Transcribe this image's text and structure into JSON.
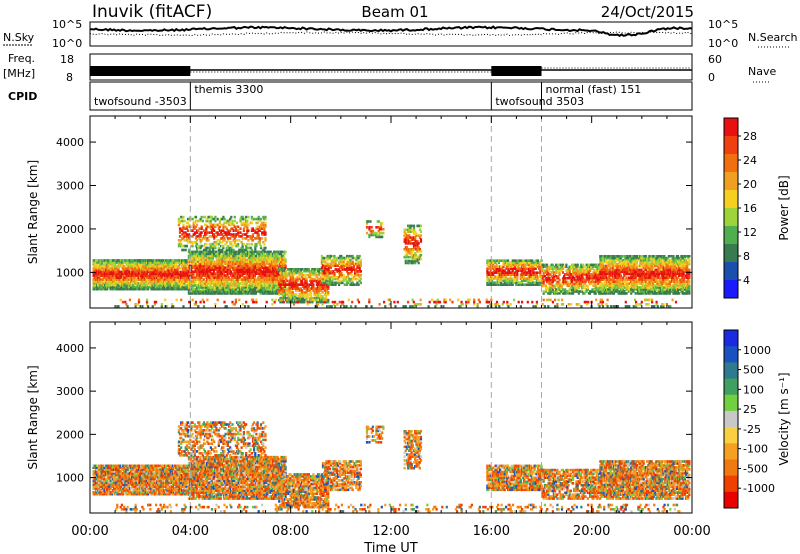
{
  "header": {
    "station": "Inuvik (fitACF)",
    "beam": "Beam 01",
    "date": "24/Oct/2015"
  },
  "sky_panel": {
    "left_label": "N.Sky",
    "right_label": "N.Search",
    "left_ticks": [
      "10^5",
      "10^0"
    ],
    "right_ticks": [
      "10^5",
      "10^0"
    ]
  },
  "freq_panel": {
    "left_label": "Freq.",
    "unit": "[MHz]",
    "left_ticks": [
      "18",
      "8"
    ],
    "right_ticks": [
      "60",
      "0"
    ],
    "right_label": "Nave"
  },
  "cpid_panel": {
    "label": "CPID",
    "segments": [
      {
        "name": "twofsound -3503",
        "start_hour": 0
      },
      {
        "name": "themis 3300",
        "start_hour": 4
      },
      {
        "name": "twofsound 3503",
        "start_hour": 16
      },
      {
        "name": "normal (fast) 151",
        "start_hour": 18
      }
    ]
  },
  "colors": {
    "power_scale": [
      "#1a1aff",
      "#1a4fae",
      "#3a7a50",
      "#4fae4f",
      "#9ed43a",
      "#f5d020",
      "#f0a020",
      "#f07010",
      "#f04010",
      "#e81010"
    ],
    "velocity_scale": [
      "#e80000",
      "#f04000",
      "#f07a10",
      "#f5a020",
      "#fad040",
      "#c8c8c8",
      "#70d040",
      "#40a060",
      "#2e7a8e",
      "#1a50c0",
      "#1a2ae0"
    ]
  },
  "chart_data": [
    {
      "type": "heatmap",
      "title": "Power",
      "xlabel": "Time UT",
      "ylabel": "Slant Range [km]",
      "x_ticks": [
        "00:00",
        "04:00",
        "08:00",
        "12:00",
        "16:00",
        "20:00",
        "00:00"
      ],
      "x_range_hours": [
        0,
        24
      ],
      "y_ticks": [
        1000,
        2000,
        3000,
        4000
      ],
      "ylim": [
        180,
        4600
      ],
      "colorbar_label": "Power [dB]",
      "colorbar_ticks": [
        4,
        8,
        12,
        16,
        20,
        24,
        28
      ],
      "mode_boundaries_hours": [
        4,
        16,
        18
      ]
    },
    {
      "type": "heatmap",
      "title": "Velocity",
      "xlabel": "Time UT",
      "ylabel": "Slant Range [km]",
      "x_ticks": [
        "00:00",
        "04:00",
        "08:00",
        "12:00",
        "16:00",
        "20:00",
        "00:00"
      ],
      "x_range_hours": [
        0,
        24
      ],
      "y_ticks": [
        1000,
        2000,
        3000,
        4000
      ],
      "ylim": [
        180,
        4600
      ],
      "colorbar_label": "Velocity [m s⁻¹]",
      "colorbar_ticks": [
        1000,
        500,
        100,
        25,
        -25,
        -100,
        -500,
        -1000
      ],
      "mode_boundaries_hours": [
        4,
        16,
        18
      ]
    }
  ],
  "footer": {
    "x_axis_label": "Time UT"
  }
}
